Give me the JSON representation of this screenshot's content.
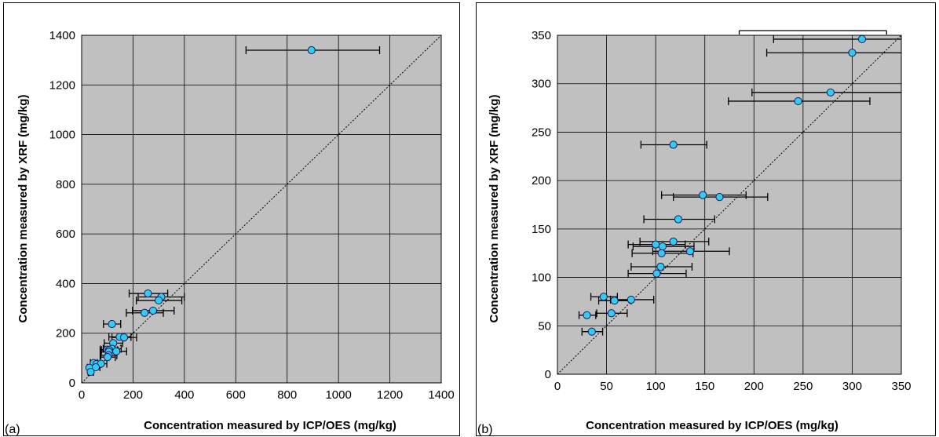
{
  "chart_data": [
    {
      "type": "scatter",
      "panel_label": "(a)",
      "xlabel": "Concentration measured by ICP/OES (mg/kg)",
      "ylabel": "Concentration measured by XRF (mg/kg)",
      "xlim": [
        0,
        1400
      ],
      "ylim": [
        0,
        1400
      ],
      "xticks": [
        0,
        200,
        400,
        600,
        800,
        1000,
        1200,
        1400
      ],
      "yticks": [
        0,
        200,
        400,
        600,
        800,
        1000,
        1200,
        1400
      ],
      "grid": true,
      "reference_line": "y = x (dotted)",
      "error_bars": "horizontal",
      "colors": {
        "marker_fill": "#33CCEE",
        "marker_edge": "#1a1a66",
        "plot_bg": "#C0C0C0",
        "grid": "#000000"
      },
      "points": [
        {
          "x": 895,
          "y": 1340,
          "xerr": [
            640,
            1160
          ]
        },
        {
          "x": 310,
          "y": 346,
          "xerr": [
            220,
            400
          ]
        },
        {
          "x": 300,
          "y": 332,
          "xerr": [
            213,
            390
          ]
        },
        {
          "x": 278,
          "y": 291,
          "xerr": [
            198,
            360
          ]
        },
        {
          "x": 245,
          "y": 282,
          "xerr": [
            174,
            318
          ]
        },
        {
          "x": 258,
          "y": 360,
          "xerr": [
            185,
            335
          ]
        },
        {
          "x": 118,
          "y": 237,
          "xerr": [
            85,
            152
          ]
        },
        {
          "x": 148,
          "y": 185,
          "xerr": [
            106,
            192
          ]
        },
        {
          "x": 165,
          "y": 183,
          "xerr": [
            118,
            214
          ]
        },
        {
          "x": 123,
          "y": 160,
          "xerr": [
            88,
            160
          ]
        },
        {
          "x": 118,
          "y": 137,
          "xerr": [
            84,
            154
          ]
        },
        {
          "x": 100,
          "y": 134,
          "xerr": [
            72,
            130
          ]
        },
        {
          "x": 107,
          "y": 132,
          "xerr": [
            77,
            139
          ]
        },
        {
          "x": 135,
          "y": 127,
          "xerr": [
            97,
            175
          ]
        },
        {
          "x": 106,
          "y": 125,
          "xerr": [
            76,
            138
          ]
        },
        {
          "x": 105,
          "y": 111,
          "xerr": [
            75,
            137
          ]
        },
        {
          "x": 101,
          "y": 104,
          "xerr": [
            72,
            131
          ]
        },
        {
          "x": 47,
          "y": 80,
          "xerr": [
            34,
            61
          ]
        },
        {
          "x": 58,
          "y": 76,
          "xerr": [
            42,
            75
          ]
        },
        {
          "x": 75,
          "y": 77,
          "xerr": [
            54,
            98
          ]
        },
        {
          "x": 30,
          "y": 61,
          "xerr": [
            22,
            39
          ]
        },
        {
          "x": 55,
          "y": 63,
          "xerr": [
            40,
            71
          ]
        },
        {
          "x": 35,
          "y": 44,
          "xerr": [
            25,
            46
          ]
        }
      ]
    },
    {
      "type": "scatter",
      "panel_label": "(b)",
      "xlabel": "Concentration measured by ICP/OES (mg/kg)",
      "ylabel": "Concentration measured by XRF (mg/kg)",
      "xlim": [
        0,
        350
      ],
      "ylim": [
        0,
        350
      ],
      "xticks": [
        0,
        50,
        100,
        150,
        200,
        250,
        300,
        350
      ],
      "yticks": [
        0,
        50,
        100,
        150,
        200,
        250,
        300,
        350
      ],
      "grid": true,
      "reference_line": "y = x (dotted)",
      "error_bars": "horizontal",
      "colors": {
        "marker_fill": "#33CCEE",
        "marker_edge": "#1a1a66",
        "plot_bg": "#C0C0C0",
        "grid": "#000000"
      },
      "points": [
        {
          "x": 310,
          "y": 346,
          "xerr": [
            220,
            400
          ]
        },
        {
          "x": 300,
          "y": 332,
          "xerr": [
            213,
            390
          ]
        },
        {
          "x": 278,
          "y": 291,
          "xerr": [
            198,
            360
          ]
        },
        {
          "x": 245,
          "y": 282,
          "xerr": [
            174,
            318
          ]
        },
        {
          "x": 118,
          "y": 237,
          "xerr": [
            85,
            152
          ]
        },
        {
          "x": 148,
          "y": 185,
          "xerr": [
            106,
            192
          ]
        },
        {
          "x": 165,
          "y": 183,
          "xerr": [
            118,
            214
          ]
        },
        {
          "x": 123,
          "y": 160,
          "xerr": [
            88,
            160
          ]
        },
        {
          "x": 118,
          "y": 137,
          "xerr": [
            84,
            154
          ]
        },
        {
          "x": 100,
          "y": 134,
          "xerr": [
            72,
            130
          ]
        },
        {
          "x": 107,
          "y": 132,
          "xerr": [
            77,
            139
          ]
        },
        {
          "x": 135,
          "y": 127,
          "xerr": [
            97,
            175
          ]
        },
        {
          "x": 106,
          "y": 125,
          "xerr": [
            76,
            138
          ]
        },
        {
          "x": 105,
          "y": 111,
          "xerr": [
            75,
            137
          ]
        },
        {
          "x": 101,
          "y": 104,
          "xerr": [
            72,
            131
          ]
        },
        {
          "x": 47,
          "y": 80,
          "xerr": [
            34,
            61
          ]
        },
        {
          "x": 58,
          "y": 76,
          "xerr": [
            42,
            75
          ]
        },
        {
          "x": 75,
          "y": 77,
          "xerr": [
            54,
            98
          ]
        },
        {
          "x": 30,
          "y": 61,
          "xerr": [
            22,
            39
          ]
        },
        {
          "x": 55,
          "y": 63,
          "xerr": [
            40,
            71
          ]
        },
        {
          "x": 35,
          "y": 44,
          "xerr": [
            25,
            46
          ]
        }
      ],
      "offscale_bar": {
        "y": 360,
        "xerr": [
          185,
          335
        ]
      }
    }
  ]
}
